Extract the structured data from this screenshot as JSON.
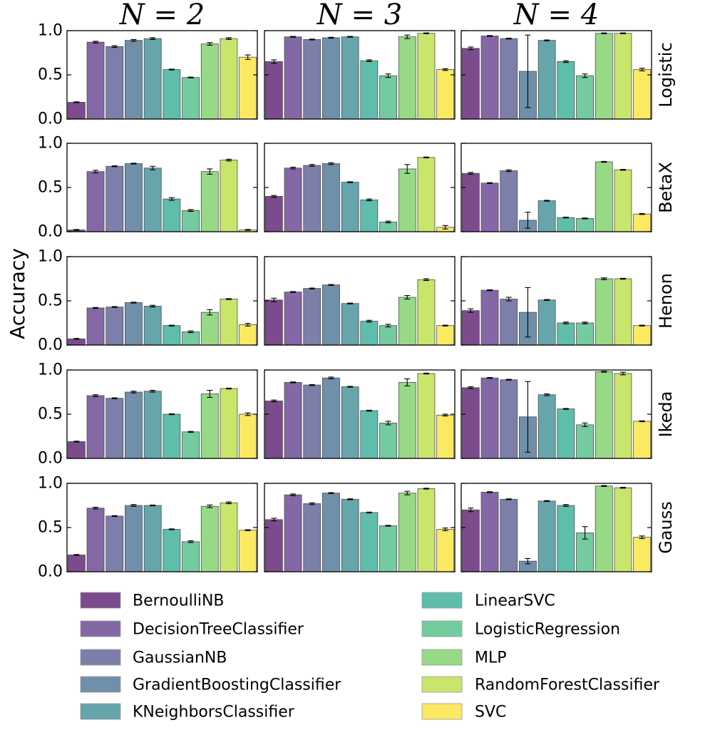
{
  "chart_data": {
    "type": "bar",
    "title": "",
    "ylabel": "Accuracy",
    "ylim": [
      0,
      1
    ],
    "yticks": [
      "0.0",
      "0.5",
      "1.0"
    ],
    "columns": [
      "N = 2",
      "N = 3",
      "N = 4"
    ],
    "rows": [
      "Logistic",
      "BetaX",
      "Henon",
      "Ikeda",
      "Gauss"
    ],
    "categories": [
      "BernoulliNB",
      "DecisionTreeClassifier",
      "GaussianNB",
      "GradientBoostingClassifier",
      "KNeighborsClassifier",
      "LinearSVC",
      "LogisticRegression",
      "MLP",
      "RandomForestClassifier",
      "SVC"
    ],
    "colors": [
      "#7b4b8e",
      "#8368a5",
      "#7b7fa9",
      "#6f8fab",
      "#66a5ac",
      "#5fbdac",
      "#74cb9f",
      "#97d987",
      "#c9e56b",
      "#fbe962"
    ],
    "legend_position": "bottom",
    "panels": [
      {
        "row": "Logistic",
        "column": "N = 2",
        "values": [
          0.19,
          0.87,
          0.82,
          0.89,
          0.91,
          0.56,
          0.47,
          0.85,
          0.91,
          0.7
        ],
        "errors": [
          0.005,
          0.01,
          0.01,
          0.01,
          0.01,
          0.005,
          0.005,
          0.015,
          0.01,
          0.025
        ]
      },
      {
        "row": "Logistic",
        "column": "N = 3",
        "values": [
          0.65,
          0.93,
          0.9,
          0.92,
          0.93,
          0.66,
          0.49,
          0.93,
          0.97,
          0.56
        ],
        "errors": [
          0.02,
          0.005,
          0.005,
          0.005,
          0.005,
          0.01,
          0.02,
          0.02,
          0.005,
          0.01
        ]
      },
      {
        "row": "Logistic",
        "column": "N = 4",
        "values": [
          0.8,
          0.94,
          0.91,
          0.54,
          0.89,
          0.65,
          0.49,
          0.97,
          0.97,
          0.56
        ],
        "errors": [
          0.015,
          0.005,
          0.005,
          0.41,
          0.005,
          0.01,
          0.02,
          0.005,
          0.005,
          0.015
        ]
      },
      {
        "row": "BetaX",
        "column": "N = 2",
        "values": [
          0.02,
          0.68,
          0.74,
          0.77,
          0.72,
          0.37,
          0.24,
          0.68,
          0.81,
          0.02
        ],
        "errors": [
          0.005,
          0.015,
          0.005,
          0.005,
          0.02,
          0.015,
          0.01,
          0.03,
          0.01,
          0.005
        ]
      },
      {
        "row": "BetaX",
        "column": "N = 3",
        "values": [
          0.4,
          0.72,
          0.75,
          0.77,
          0.56,
          0.36,
          0.11,
          0.71,
          0.84,
          0.05
        ],
        "errors": [
          0.01,
          0.01,
          0.01,
          0.01,
          0.005,
          0.01,
          0.01,
          0.05,
          0.005,
          0.02
        ]
      },
      {
        "row": "BetaX",
        "column": "N = 4",
        "values": [
          0.66,
          0.55,
          0.69,
          0.13,
          0.35,
          0.16,
          0.15,
          0.79,
          0.7,
          0.2
        ],
        "errors": [
          0.01,
          0.005,
          0.01,
          0.09,
          0.005,
          0.005,
          0.005,
          0.005,
          0.005,
          0.005
        ]
      },
      {
        "row": "Henon",
        "column": "N = 2",
        "values": [
          0.07,
          0.42,
          0.43,
          0.48,
          0.44,
          0.22,
          0.15,
          0.37,
          0.52,
          0.23
        ],
        "errors": [
          0.005,
          0.005,
          0.005,
          0.005,
          0.01,
          0.005,
          0.01,
          0.03,
          0.005,
          0.015
        ]
      },
      {
        "row": "Henon",
        "column": "N = 3",
        "values": [
          0.51,
          0.6,
          0.64,
          0.68,
          0.47,
          0.27,
          0.22,
          0.54,
          0.74,
          0.22
        ],
        "errors": [
          0.02,
          0.005,
          0.005,
          0.005,
          0.005,
          0.01,
          0.015,
          0.02,
          0.01,
          0.005
        ]
      },
      {
        "row": "Henon",
        "column": "N = 4",
        "values": [
          0.39,
          0.62,
          0.52,
          0.37,
          0.51,
          0.25,
          0.25,
          0.75,
          0.75,
          0.22
        ],
        "errors": [
          0.02,
          0.005,
          0.02,
          0.28,
          0.005,
          0.01,
          0.01,
          0.01,
          0.005,
          0.005
        ]
      },
      {
        "row": "Ikeda",
        "column": "N = 2",
        "values": [
          0.19,
          0.71,
          0.68,
          0.75,
          0.76,
          0.5,
          0.3,
          0.73,
          0.79,
          0.5
        ],
        "errors": [
          0.005,
          0.01,
          0.005,
          0.01,
          0.01,
          0.005,
          0.005,
          0.04,
          0.005,
          0.015
        ]
      },
      {
        "row": "Ikeda",
        "column": "N = 3",
        "values": [
          0.65,
          0.86,
          0.83,
          0.91,
          0.81,
          0.54,
          0.4,
          0.86,
          0.96,
          0.49
        ],
        "errors": [
          0.01,
          0.005,
          0.005,
          0.01,
          0.005,
          0.005,
          0.02,
          0.04,
          0.005,
          0.01
        ]
      },
      {
        "row": "Ikeda",
        "column": "N = 4",
        "values": [
          0.8,
          0.91,
          0.89,
          0.47,
          0.72,
          0.56,
          0.38,
          0.98,
          0.96,
          0.42
        ],
        "errors": [
          0.01,
          0.005,
          0.005,
          0.4,
          0.01,
          0.005,
          0.02,
          0.005,
          0.015,
          0.005
        ]
      },
      {
        "row": "Gauss",
        "column": "N = 2",
        "values": [
          0.19,
          0.72,
          0.63,
          0.75,
          0.75,
          0.48,
          0.34,
          0.74,
          0.78,
          0.47
        ],
        "errors": [
          0.005,
          0.01,
          0.005,
          0.01,
          0.005,
          0.005,
          0.01,
          0.015,
          0.01,
          0.005
        ]
      },
      {
        "row": "Gauss",
        "column": "N = 3",
        "values": [
          0.59,
          0.87,
          0.77,
          0.89,
          0.82,
          0.67,
          0.52,
          0.89,
          0.94,
          0.48
        ],
        "errors": [
          0.015,
          0.01,
          0.01,
          0.005,
          0.005,
          0.005,
          0.005,
          0.02,
          0.005,
          0.015
        ]
      },
      {
        "row": "Gauss",
        "column": "N = 4",
        "values": [
          0.7,
          0.9,
          0.82,
          0.12,
          0.8,
          0.75,
          0.44,
          0.97,
          0.95,
          0.39
        ],
        "errors": [
          0.02,
          0.005,
          0.005,
          0.03,
          0.005,
          0.01,
          0.07,
          0.005,
          0.005,
          0.015
        ]
      }
    ]
  }
}
